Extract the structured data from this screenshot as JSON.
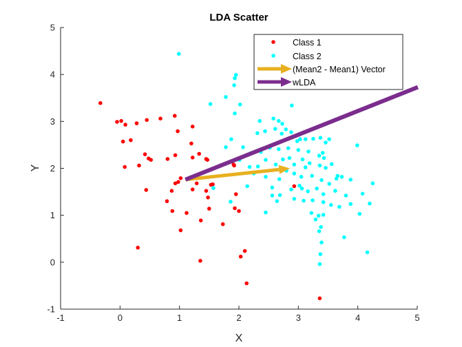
{
  "chart_data": {
    "type": "scatter",
    "title": "LDA Scatter",
    "xlabel": "X",
    "ylabel": "Y",
    "xlim": [
      -1,
      5
    ],
    "ylim": [
      -1,
      5
    ],
    "xticks": [
      "-1",
      "0",
      "1",
      "2",
      "3",
      "4",
      "5"
    ],
    "yticks": [
      "-1",
      "0",
      "1",
      "2",
      "3",
      "4",
      "5"
    ],
    "grid": false,
    "legend_position": "top-right",
    "colors": {
      "class1": "#ff0000",
      "class2": "#00ffff",
      "mean_diff": "#e8b020",
      "wlda": "#7b2d8e",
      "axis": "#262626"
    },
    "series": [
      {
        "name": "Class 1",
        "kind": "points",
        "points": [
          [
            -0.33,
            3.39
          ],
          [
            -0.05,
            2.99
          ],
          [
            0.02,
            3.01
          ],
          [
            0.09,
            2.93
          ],
          [
            0.18,
            2.6
          ],
          [
            0.05,
            2.57
          ],
          [
            0.28,
            2.96
          ],
          [
            0.45,
            3.03
          ],
          [
            0.68,
            3.06
          ],
          [
            0.92,
            3.12
          ],
          [
            0.97,
            2.79
          ],
          [
            1.22,
            2.89
          ],
          [
            0.08,
            2.03
          ],
          [
            0.32,
            2.06
          ],
          [
            0.42,
            2.3
          ],
          [
            0.48,
            2.21
          ],
          [
            0.52,
            2.18
          ],
          [
            0.8,
            2.2
          ],
          [
            0.93,
            2.28
          ],
          [
            1.2,
            2.53
          ],
          [
            1.22,
            2.23
          ],
          [
            1.33,
            2.31
          ],
          [
            1.45,
            2.2
          ],
          [
            1.47,
            2.18
          ],
          [
            1.02,
            1.79
          ],
          [
            0.93,
            1.68
          ],
          [
            0.98,
            1.71
          ],
          [
            0.87,
            1.52
          ],
          [
            1.22,
            1.55
          ],
          [
            1.29,
            1.68
          ],
          [
            1.45,
            1.52
          ],
          [
            1.53,
            1.65
          ],
          [
            1.56,
            1.66
          ],
          [
            0.44,
            1.54
          ],
          [
            0.79,
            1.3
          ],
          [
            0.88,
            1.09
          ],
          [
            1.12,
            1.05
          ],
          [
            1.48,
            1.38
          ],
          [
            1.5,
            1.14
          ],
          [
            1.36,
            0.89
          ],
          [
            1.02,
            0.68
          ],
          [
            0.3,
            0.31
          ],
          [
            1.73,
            0.81
          ],
          [
            1.93,
            1.15
          ],
          [
            1.95,
            1.45
          ],
          [
            2.0,
            1.09
          ],
          [
            1.92,
            2.06
          ],
          [
            2.03,
            0.12
          ],
          [
            2.1,
            0.24
          ],
          [
            2.13,
            -0.45
          ],
          [
            1.35,
            0.03
          ],
          [
            3.36,
            -0.77
          ],
          [
            2.93,
            1.62
          ],
          [
            1.91,
            2.08
          ]
        ]
      },
      {
        "name": "Class 2",
        "kind": "points",
        "points": [
          [
            0.99,
            4.44
          ],
          [
            1.95,
            3.99
          ],
          [
            1.93,
            3.92
          ],
          [
            1.92,
            3.77
          ],
          [
            1.78,
            3.52
          ],
          [
            1.52,
            3.37
          ],
          [
            2.02,
            3.36
          ],
          [
            2.89,
            3.34
          ],
          [
            1.93,
            3.17
          ],
          [
            2.35,
            3.01
          ],
          [
            2.58,
            3.06
          ],
          [
            2.67,
            3.01
          ],
          [
            2.73,
            2.95
          ],
          [
            2.79,
            2.83
          ],
          [
            2.61,
            2.84
          ],
          [
            2.44,
            2.79
          ],
          [
            2.72,
            2.74
          ],
          [
            2.88,
            2.77
          ],
          [
            1.87,
            2.62
          ],
          [
            2.31,
            2.75
          ],
          [
            2.98,
            2.58
          ],
          [
            3.03,
            2.62
          ],
          [
            3.12,
            2.62
          ],
          [
            3.25,
            2.63
          ],
          [
            3.37,
            2.65
          ],
          [
            3.46,
            2.55
          ],
          [
            3.52,
            2.62
          ],
          [
            3.99,
            2.49
          ],
          [
            1.78,
            2.45
          ],
          [
            2.07,
            2.45
          ],
          [
            2.37,
            2.35
          ],
          [
            2.52,
            2.44
          ],
          [
            2.67,
            2.41
          ],
          [
            2.83,
            2.43
          ],
          [
            3.0,
            2.39
          ],
          [
            3.17,
            2.36
          ],
          [
            3.35,
            2.27
          ],
          [
            3.41,
            2.33
          ],
          [
            2.19,
            2.32
          ],
          [
            2.45,
            2.18
          ],
          [
            2.74,
            2.19
          ],
          [
            2.85,
            2.22
          ],
          [
            3.07,
            2.19
          ],
          [
            3.19,
            2.11
          ],
          [
            3.43,
            2.22
          ],
          [
            3.56,
            2.09
          ],
          [
            2.01,
            2.18
          ],
          [
            2.18,
            2.03
          ],
          [
            2.32,
            2.04
          ],
          [
            2.62,
            2.08
          ],
          [
            2.93,
            2.08
          ],
          [
            3.12,
            2.02
          ],
          [
            3.36,
            2.06
          ],
          [
            3.46,
            2.01
          ],
          [
            3.64,
            1.78
          ],
          [
            2.25,
            1.89
          ],
          [
            2.45,
            1.82
          ],
          [
            2.68,
            1.77
          ],
          [
            2.8,
            1.95
          ],
          [
            2.93,
            1.89
          ],
          [
            3.05,
            1.82
          ],
          [
            3.23,
            1.84
          ],
          [
            3.39,
            1.75
          ],
          [
            3.52,
            1.67
          ],
          [
            3.73,
            1.82
          ],
          [
            3.66,
            1.84
          ],
          [
            3.88,
            1.76
          ],
          [
            2.14,
            1.62
          ],
          [
            2.56,
            1.59
          ],
          [
            2.69,
            1.43
          ],
          [
            2.88,
            1.55
          ],
          [
            3.02,
            1.63
          ],
          [
            3.16,
            1.51
          ],
          [
            3.31,
            1.57
          ],
          [
            3.42,
            1.45
          ],
          [
            3.62,
            1.52
          ],
          [
            3.8,
            1.42
          ],
          [
            4.08,
            1.46
          ],
          [
            4.25,
            1.68
          ],
          [
            2.64,
            1.3
          ],
          [
            2.93,
            1.35
          ],
          [
            3.09,
            1.31
          ],
          [
            3.24,
            1.32
          ],
          [
            3.42,
            1.28
          ],
          [
            3.55,
            1.22
          ],
          [
            3.69,
            1.18
          ],
          [
            3.88,
            1.24
          ],
          [
            4.2,
            1.25
          ],
          [
            1.57,
            1.58
          ],
          [
            1.86,
            1.29
          ],
          [
            2.45,
            1.06
          ],
          [
            3.22,
            1.05
          ],
          [
            3.34,
            0.99
          ],
          [
            3.42,
            1.01
          ],
          [
            3.29,
            0.91
          ],
          [
            3.38,
            0.75
          ],
          [
            3.35,
            0.66
          ],
          [
            3.77,
            0.53
          ],
          [
            4.03,
            1.03
          ],
          [
            3.39,
            0.42
          ],
          [
            3.37,
            0.17
          ],
          [
            3.36,
            -0.04
          ],
          [
            4.16,
            0.21
          ],
          [
            3.06,
            1.57
          ],
          [
            2.56,
            1.42
          ]
        ]
      },
      {
        "name": "(Mean2 - Mean1) Vector",
        "kind": "arrow",
        "from": [
          1.1,
          1.76
        ],
        "to": [
          2.86,
          2.0
        ]
      },
      {
        "name": "wLDA",
        "kind": "arrow",
        "from": [
          1.1,
          1.76
        ],
        "to": [
          5.01,
          3.73
        ]
      }
    ]
  }
}
